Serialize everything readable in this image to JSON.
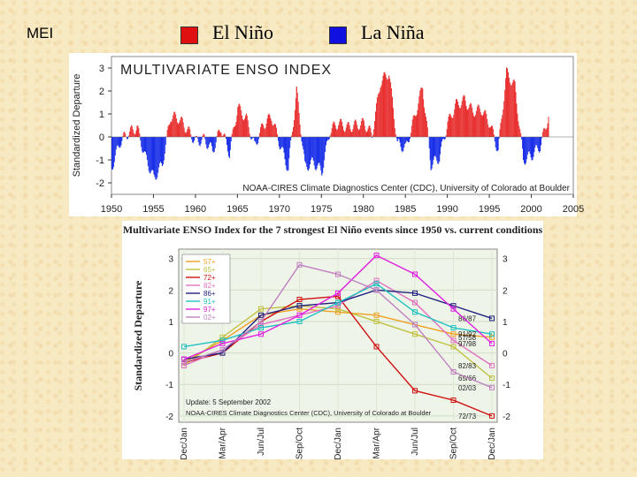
{
  "header": {
    "title": "MEI",
    "legend": [
      {
        "label": "El Niño",
        "color": "#e01010"
      },
      {
        "label": "La Niña",
        "color": "#1010e0"
      }
    ]
  },
  "chart_data": [
    {
      "type": "area",
      "title": "MULTIVARIATE ENSO INDEX",
      "ylabel": "Standardized Departure",
      "xlabel": "",
      "ylim": [
        -2.5,
        3.5
      ],
      "xlim": [
        1950,
        2005
      ],
      "yticks": [
        "3",
        "2",
        "1",
        "0",
        "-1",
        "-2"
      ],
      "xticks": [
        "1950",
        "1955",
        "1960",
        "1965",
        "1970",
        "1975",
        "1980",
        "1985",
        "1990",
        "1995",
        "2000",
        "2005"
      ],
      "annotation": "NOAA-CIRES Climate Diagnostics Center (CDC), University of Colorado at Boulder",
      "colors": {
        "positive": "#e83030",
        "negative": "#1a30e8"
      },
      "x": [
        1950,
        1951,
        1952,
        1953,
        1954,
        1955,
        1956,
        1957,
        1958,
        1959,
        1960,
        1961,
        1962,
        1963,
        1964,
        1965,
        1966,
        1967,
        1968,
        1969,
        1970,
        1971,
        1972,
        1973,
        1974,
        1975,
        1976,
        1977,
        1978,
        1979,
        1980,
        1981,
        1982,
        1983,
        1984,
        1985,
        1986,
        1987,
        1988,
        1989,
        1990,
        1991,
        1992,
        1993,
        1994,
        1995,
        1996,
        1997,
        1998,
        1999,
        2000,
        2001,
        2002
      ],
      "values": [
        -1.3,
        -0.2,
        0.2,
        0.4,
        -0.9,
        -1.8,
        -1.2,
        0.9,
        0.8,
        0.3,
        -0.2,
        -0.1,
        -0.6,
        0.4,
        -0.7,
        1.3,
        0.8,
        -0.4,
        0.5,
        0.9,
        -0.3,
        -1.4,
        2.0,
        -1.3,
        -1.1,
        -1.5,
        0.3,
        0.6,
        0.4,
        0.5,
        0.6,
        0.1,
        2.4,
        2.8,
        -0.3,
        -0.5,
        0.8,
        2.2,
        -1.2,
        -0.9,
        0.6,
        1.4,
        1.6,
        1.1,
        1.2,
        0.6,
        -0.6,
        2.8,
        2.2,
        -1.0,
        -0.8,
        -0.4,
        0.9
      ]
    },
    {
      "type": "line",
      "title": "Multivariate ENSO Index for the 7 strongest El Niño events since 1950 vs. current conditions",
      "ylabel": "Standardized Departure",
      "xlabel": "",
      "ylim": [
        -2.2,
        3.3
      ],
      "yticks": [
        "3",
        "2",
        "1",
        "0",
        "-1",
        "-2"
      ],
      "categories": [
        "Dec/Jan",
        "Mar/Apr",
        "Jun/Jul",
        "Sep/Oct",
        "Dec/Jan",
        "Mar/Apr",
        "Jun/Jul",
        "Sep/Oct",
        "Dec/Jan"
      ],
      "annotations": [
        "Update: 5 September 2002",
        "NOAA-CIRES Climate Diagnostics Center (CDC), University of Colorado at Boulder"
      ],
      "series": [
        {
          "name": "57+",
          "end_label": "57/58",
          "color": "#f0a020",
          "values": [
            -0.3,
            0.4,
            1.2,
            1.4,
            1.3,
            1.2,
            0.9,
            0.6,
            0.5
          ]
        },
        {
          "name": "65+",
          "end_label": "65/66",
          "color": "#c0c040",
          "values": [
            -0.4,
            0.5,
            1.4,
            1.5,
            1.4,
            1.0,
            0.6,
            0.2,
            -0.8
          ]
        },
        {
          "name": "72+",
          "end_label": "72/73",
          "color": "#d01010",
          "values": [
            -0.3,
            0.0,
            1.0,
            1.7,
            1.8,
            0.2,
            -1.2,
            -1.5,
            -2.0
          ]
        },
        {
          "name": "82+",
          "end_label": "82/83",
          "color": "#e070c0",
          "values": [
            -0.4,
            0.1,
            0.9,
            1.2,
            1.5,
            2.3,
            1.6,
            0.4,
            -0.4
          ]
        },
        {
          "name": "86+",
          "end_label": "86/87",
          "color": "#202080",
          "values": [
            -0.2,
            0.0,
            1.2,
            1.5,
            1.6,
            2.0,
            1.9,
            1.5,
            1.1
          ]
        },
        {
          "name": "91+",
          "end_label": "91/92",
          "color": "#20c0c0",
          "values": [
            0.2,
            0.4,
            0.8,
            1.0,
            1.6,
            2.2,
            1.3,
            0.8,
            0.6
          ]
        },
        {
          "name": "97+",
          "end_label": "97/98",
          "color": "#e020e0",
          "values": [
            -0.2,
            0.3,
            0.6,
            1.2,
            1.9,
            3.1,
            2.5,
            1.4,
            0.3
          ]
        },
        {
          "name": "02+",
          "end_label": "02/03",
          "color": "#c080c0",
          "values": [
            -0.3,
            0.1,
            1.0,
            2.8,
            2.5,
            2.0,
            0.9,
            -0.6,
            -1.1
          ]
        }
      ]
    }
  ]
}
